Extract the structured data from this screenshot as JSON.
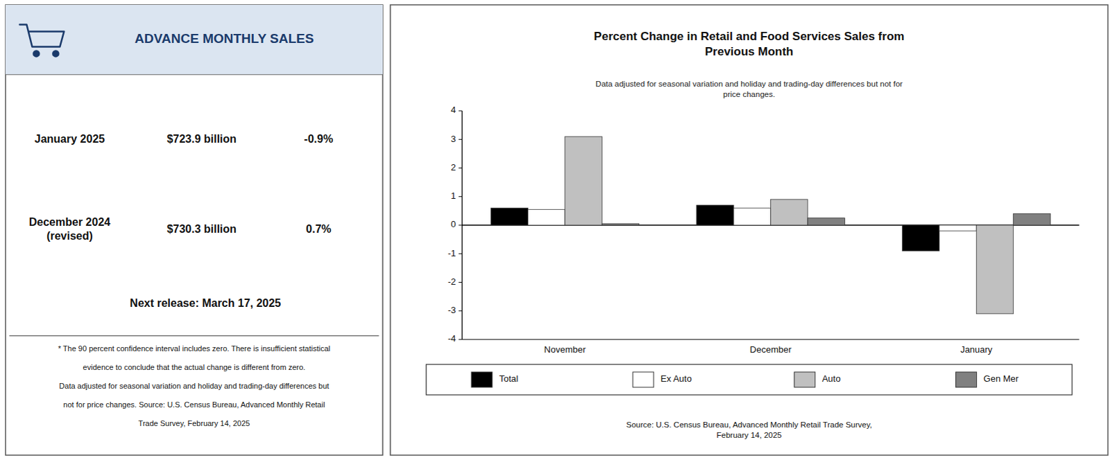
{
  "chart_data": {
    "type": "bar",
    "title": "Percent Change in Retail and Food Services Sales from\nPrevious Month",
    "subtitle": "Data adjusted for seasonal variation and holiday and trading-day differences but not for\nprice changes.",
    "categories": [
      "November",
      "December",
      "January"
    ],
    "series": [
      {
        "name": "Total",
        "color": "#000000",
        "values": [
          0.6,
          0.7,
          -0.9
        ]
      },
      {
        "name": "Ex Auto",
        "color": "#ffffff",
        "values": [
          0.55,
          0.6,
          -0.2
        ]
      },
      {
        "name": "Auto",
        "color": "#c0c0c0",
        "values": [
          3.1,
          0.9,
          -3.1
        ]
      },
      {
        "name": "Gen Mer",
        "color": "#808080",
        "values": [
          0.05,
          0.25,
          0.4
        ]
      }
    ],
    "ylim": [
      -4,
      4
    ],
    "yticks": [
      -4,
      -3,
      -2,
      -1,
      0,
      1,
      2,
      3,
      4
    ],
    "grid": false,
    "legend": "bottom",
    "annotations": [
      "ADVANCE MONTHLY SALES",
      "January 2025",
      "$723.9 billion",
      "-0.9%",
      "December 2024\n(revised)",
      "$730.3 billion",
      "0.7%",
      "Next release: March 17, 2025",
      "* The 90 percent confidence interval includes zero. There is insufficient statistical",
      "evidence to conclude that the actual change is different from zero.",
      "Data adjusted for seasonal variation and holiday and trading-day differences but",
      "not for price changes. Source: U.S. Census Bureau, Advanced Monthly Retail",
      "Trade Survey, February 14, 2025",
      "Source: U.S. Census Bureau, Advanced Monthly Retail Trade Survey,\nFebruary 14, 2025"
    ]
  }
}
